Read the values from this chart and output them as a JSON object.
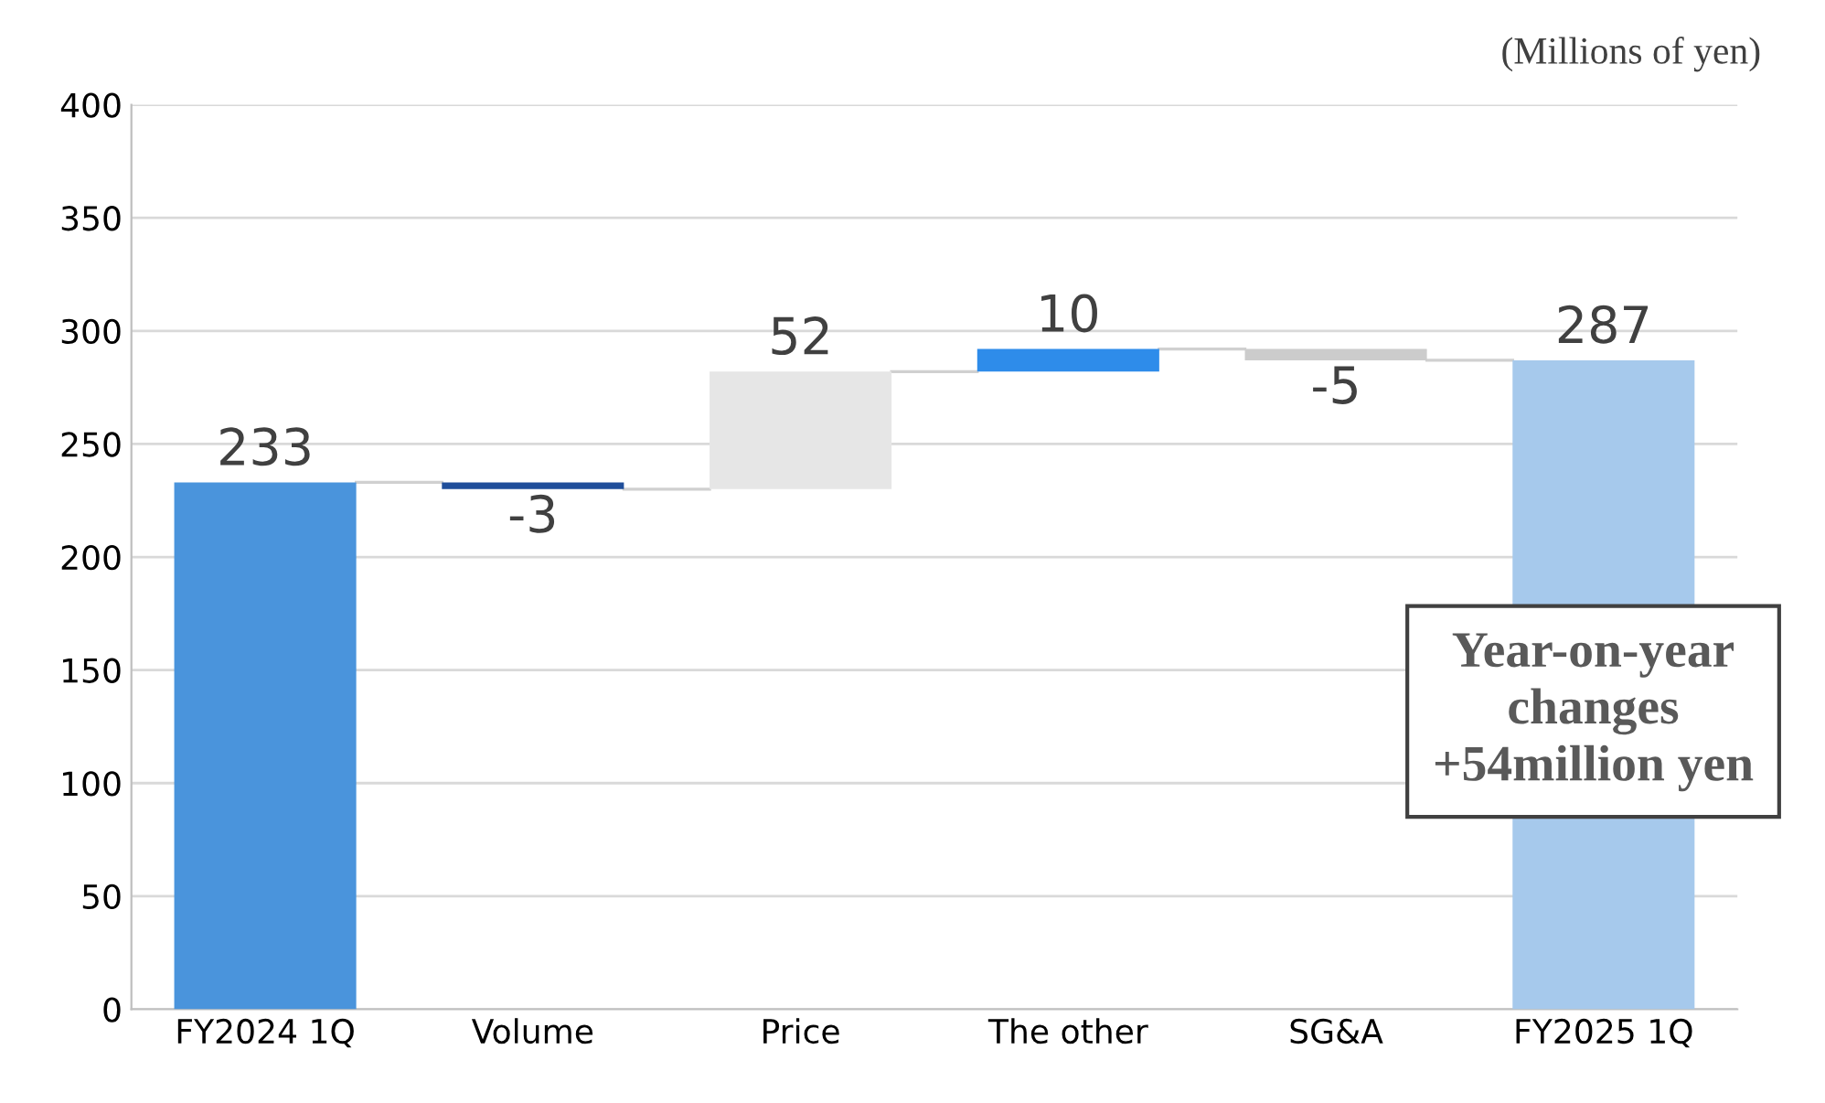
{
  "chart_data": {
    "type": "bar",
    "categories": [
      "FY2024 1Q",
      "Volume",
      "Price",
      "The other",
      "SG&A",
      "FY2025 1Q"
    ],
    "values": [
      233,
      -3,
      52,
      10,
      -5,
      287
    ],
    "base": [
      0,
      233,
      230,
      282,
      292,
      0
    ],
    "colors": [
      "#4a94dc",
      "#1f4e9a",
      "#e6e6e6",
      "#2e8cea",
      "#cccccc",
      "#a6c9ec"
    ],
    "value_labels": [
      "233",
      "-3",
      "52",
      "10",
      "-5",
      "287"
    ],
    "ylim": [
      0,
      400
    ],
    "yticks": [
      0,
      50,
      100,
      150,
      200,
      250,
      300,
      350,
      400
    ],
    "grid": "y",
    "annotations": [
      "(Millions of yen)",
      "Year-on-year\nchanges\n+54million yen"
    ]
  }
}
